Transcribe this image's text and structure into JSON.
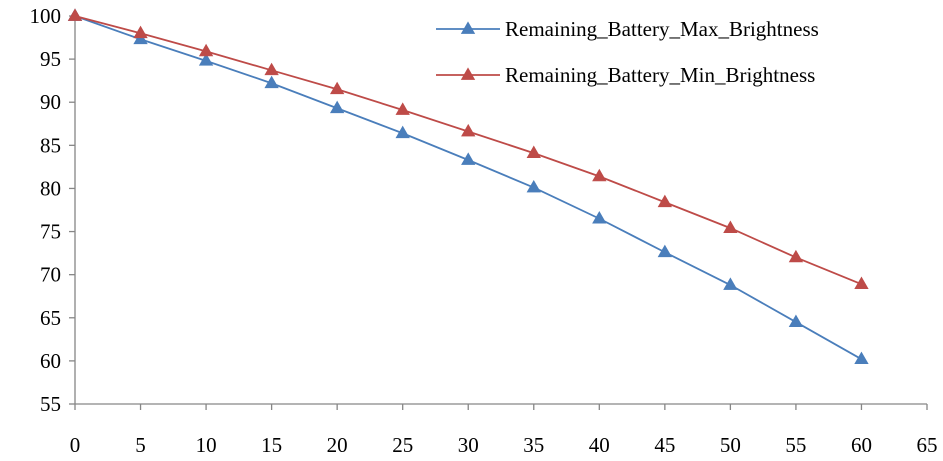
{
  "chart_data": {
    "type": "line",
    "title": "",
    "xlabel": "",
    "ylabel": "",
    "x": [
      0,
      5,
      10,
      15,
      20,
      25,
      30,
      35,
      40,
      45,
      50,
      55,
      60
    ],
    "xlim": [
      0,
      65
    ],
    "ylim": [
      55,
      100
    ],
    "x_ticks": [
      0,
      5,
      10,
      15,
      20,
      25,
      30,
      35,
      40,
      45,
      50,
      55,
      60,
      65
    ],
    "y_ticks": [
      55,
      60,
      65,
      70,
      75,
      80,
      85,
      90,
      95,
      100
    ],
    "grid": false,
    "legend_position": "top-right",
    "series": [
      {
        "name": "Remaining_Battery_Max_Brightness",
        "color": "#4a7ebb",
        "marker": "triangle",
        "values": [
          100,
          97.3,
          94.8,
          92.2,
          89.3,
          86.4,
          83.3,
          80.1,
          76.5,
          72.6,
          68.8,
          64.5,
          60.2
        ]
      },
      {
        "name": "Remaining_Battery_Min_Brightness",
        "color": "#be4b48",
        "marker": "triangle",
        "values": [
          100,
          98.0,
          95.9,
          93.7,
          91.5,
          89.1,
          86.6,
          84.1,
          81.4,
          78.4,
          75.4,
          72.0,
          68.9
        ]
      }
    ]
  }
}
